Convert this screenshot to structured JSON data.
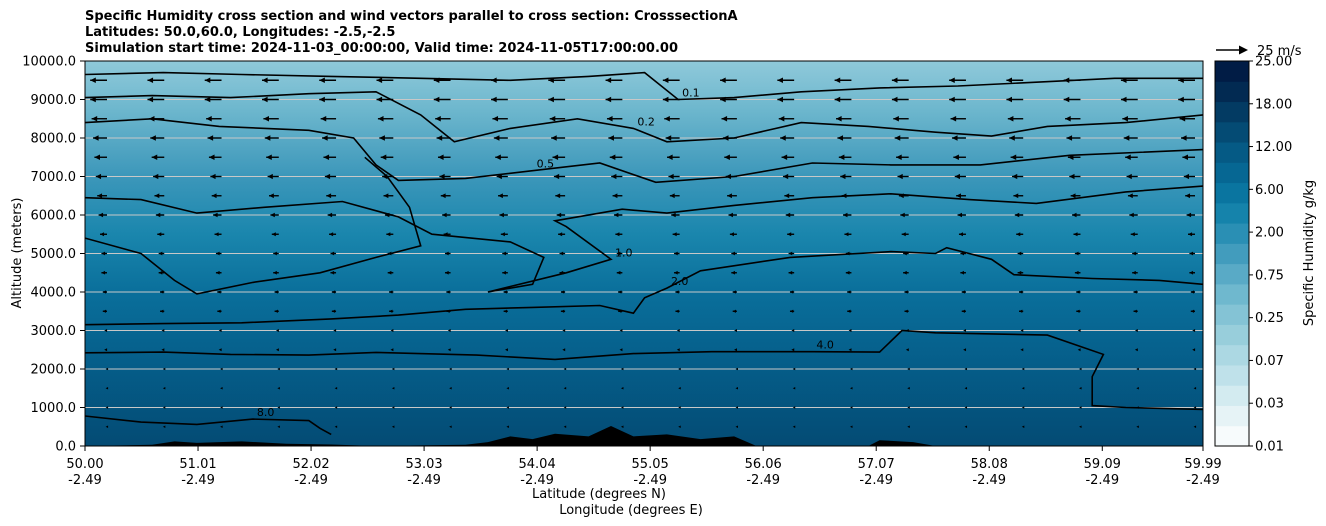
{
  "chart_data": {
    "type": "contourf_cross_section",
    "title_lines": [
      "Specific Humidity cross section and wind vectors parallel to cross section: CrosssectionA",
      "Latitudes: 50.0,60.0, Longitudes: -2.5,-2.5",
      "Simulation start time: 2024-11-03_00:00:00, Valid time: 2024-11-05T17:00:00.00"
    ],
    "ylabel": "Altitude (meters)",
    "xlabel_lat": "Latitude (degrees N)",
    "xlabel_lon": "Longitude (degrees E)",
    "ylim": [
      0,
      10000
    ],
    "xlim": [
      50.0,
      59.99
    ],
    "y_ticks": [
      "0.0",
      "1000.0",
      "2000.0",
      "3000.0",
      "4000.0",
      "5000.0",
      "6000.0",
      "7000.0",
      "8000.0",
      "9000.0",
      "10000.0"
    ],
    "y_tick_values": [
      0,
      1000,
      2000,
      3000,
      4000,
      5000,
      6000,
      7000,
      8000,
      9000,
      10000
    ],
    "x_ticks_lat": [
      "50.00",
      "51.01",
      "52.02",
      "53.03",
      "54.04",
      "55.05",
      "56.06",
      "57.07",
      "58.08",
      "59.09",
      "59.99"
    ],
    "x_ticks_lon": [
      "-2.49",
      "-2.49",
      "-2.49",
      "-2.49",
      "-2.49",
      "-2.49",
      "-2.49",
      "-2.49",
      "-2.49",
      "-2.49",
      "-2.49"
    ],
    "x_tick_values": [
      50.0,
      51.01,
      52.02,
      53.03,
      54.04,
      55.05,
      56.06,
      57.07,
      58.08,
      59.09,
      59.99
    ],
    "grid": "horizontal",
    "colorbar": {
      "label": "Specific Humidity g/kg",
      "tick_labels": [
        "0.01",
        "0.03",
        "0.07",
        "0.25",
        "0.75",
        "2.00",
        "6.00",
        "12.00",
        "18.00",
        "25.00"
      ],
      "levels": [
        "0.01",
        "0.02",
        "0.03",
        "0.05",
        "0.07",
        "0.1",
        "0.25",
        "0.5",
        "0.75",
        "1.0",
        "2.00",
        "4.0",
        "6.00",
        "8.0",
        "12.00",
        "15.0",
        "18.00",
        "20.0",
        "25.00"
      ],
      "colors": [
        "#f7fbfc",
        "#e6f3f6",
        "#d3ebf0",
        "#bfe1ea",
        "#acd8e3",
        "#98cedb",
        "#84c3d5",
        "#6fb8ce",
        "#59aac6",
        "#429cbd",
        "#2a8fb4",
        "#1583ab",
        "#0a75a0",
        "#066793",
        "#055a85",
        "#044b74",
        "#033b63",
        "#022a52",
        "#011c45"
      ]
    },
    "wind_reference": {
      "label": "25 m/s",
      "speed": 25
    },
    "contour_levels_labeled": [
      "0.1",
      "0.2",
      "0.5",
      "1.0",
      "2.0",
      "4.0",
      "8.0",
      "0.1",
      "1.0"
    ],
    "contours": [
      {
        "level": 8.0,
        "label": "8.0",
        "points": [
          [
            50.0,
            780
          ],
          [
            50.5,
            620
          ],
          [
            51.0,
            560
          ],
          [
            51.5,
            700
          ],
          [
            52.0,
            660
          ],
          [
            52.1,
            460
          ],
          [
            52.2,
            300
          ]
        ]
      },
      {
        "level": 4.0,
        "label": "4.0",
        "points": [
          [
            50.0,
            2420
          ],
          [
            50.7,
            2440
          ],
          [
            51.3,
            2380
          ],
          [
            52.0,
            2360
          ],
          [
            52.6,
            2430
          ],
          [
            53.5,
            2360
          ],
          [
            54.2,
            2250
          ],
          [
            54.9,
            2400
          ],
          [
            55.6,
            2450
          ],
          [
            56.5,
            2450
          ],
          [
            57.1,
            2440
          ],
          [
            57.3,
            3000
          ],
          [
            57.6,
            2940
          ],
          [
            58.6,
            2880
          ],
          [
            59.1,
            2380
          ],
          [
            59.0,
            1800
          ],
          [
            59.0,
            1050
          ],
          [
            59.3,
            1000
          ],
          [
            59.99,
            950
          ]
        ]
      },
      {
        "level": 2.0,
        "label": "2.0",
        "points": [
          [
            50.0,
            3150
          ],
          [
            50.7,
            3180
          ],
          [
            51.4,
            3200
          ],
          [
            52.2,
            3300
          ],
          [
            52.8,
            3400
          ],
          [
            53.4,
            3550
          ],
          [
            54.0,
            3600
          ],
          [
            54.6,
            3650
          ],
          [
            54.9,
            3450
          ],
          [
            55.0,
            3850
          ],
          [
            55.2,
            4100
          ],
          [
            55.5,
            4550
          ],
          [
            56.3,
            4900
          ],
          [
            57.2,
            5050
          ],
          [
            57.6,
            5000
          ],
          [
            57.7,
            5150
          ],
          [
            58.1,
            4850
          ],
          [
            58.3,
            4450
          ],
          [
            59.0,
            4350
          ],
          [
            59.6,
            4300
          ],
          [
            59.99,
            4200
          ]
        ]
      },
      {
        "level": 1.0,
        "label": "1.0",
        "points": [
          [
            50.0,
            6450
          ],
          [
            50.5,
            6400
          ],
          [
            51.0,
            6050
          ],
          [
            51.6,
            6200
          ],
          [
            52.3,
            6350
          ],
          [
            52.8,
            5950
          ],
          [
            53.1,
            5500
          ],
          [
            53.8,
            5300
          ],
          [
            54.1,
            4900
          ],
          [
            54.0,
            4200
          ],
          [
            53.6,
            4000
          ],
          [
            54.3,
            4500
          ],
          [
            54.7,
            4850
          ],
          [
            54.3,
            5700
          ],
          [
            54.2,
            5850
          ],
          [
            54.8,
            6150
          ],
          [
            55.2,
            6050
          ],
          [
            55.8,
            6250
          ],
          [
            56.5,
            6450
          ],
          [
            57.2,
            6550
          ],
          [
            57.9,
            6400
          ],
          [
            58.5,
            6300
          ],
          [
            59.3,
            6600
          ],
          [
            59.99,
            6750
          ]
        ]
      },
      {
        "level": 1.0,
        "label": "",
        "points": [
          [
            50.0,
            5400
          ],
          [
            50.5,
            5000
          ],
          [
            50.8,
            4300
          ],
          [
            51.0,
            3950
          ],
          [
            51.5,
            4250
          ],
          [
            52.1,
            4500
          ],
          [
            52.6,
            4900
          ],
          [
            53.0,
            5200
          ],
          [
            52.9,
            6200
          ],
          [
            52.7,
            7000
          ],
          [
            52.5,
            7500
          ]
        ]
      },
      {
        "level": 0.5,
        "label": "0.5",
        "points": [
          [
            50.0,
            8400
          ],
          [
            50.6,
            8500
          ],
          [
            51.2,
            8300
          ],
          [
            52.0,
            8200
          ],
          [
            52.4,
            8000
          ],
          [
            52.6,
            7300
          ],
          [
            52.8,
            6900
          ],
          [
            53.4,
            6950
          ],
          [
            54.0,
            7150
          ],
          [
            54.6,
            7350
          ],
          [
            55.1,
            6850
          ],
          [
            55.8,
            7000
          ],
          [
            56.5,
            7350
          ],
          [
            57.2,
            7300
          ],
          [
            58.0,
            7300
          ],
          [
            58.8,
            7550
          ],
          [
            59.99,
            7700
          ]
        ]
      },
      {
        "level": 0.2,
        "label": "0.2",
        "points": [
          [
            50.0,
            9050
          ],
          [
            50.6,
            9100
          ],
          [
            51.3,
            9050
          ],
          [
            52.0,
            9150
          ],
          [
            52.6,
            9200
          ],
          [
            53.0,
            8600
          ],
          [
            53.3,
            7900
          ],
          [
            53.8,
            8250
          ],
          [
            54.4,
            8500
          ],
          [
            54.9,
            8250
          ],
          [
            55.2,
            7900
          ],
          [
            55.8,
            8000
          ],
          [
            56.4,
            8400
          ],
          [
            57.0,
            8300
          ],
          [
            57.6,
            8150
          ],
          [
            58.1,
            8050
          ],
          [
            58.6,
            8300
          ],
          [
            59.3,
            8400
          ],
          [
            59.99,
            8600
          ]
        ]
      },
      {
        "level": 0.1,
        "label": "0.1",
        "points": [
          [
            50.0,
            9650
          ],
          [
            50.7,
            9700
          ],
          [
            51.4,
            9650
          ],
          [
            52.2,
            9600
          ],
          [
            53.0,
            9550
          ],
          [
            53.8,
            9500
          ],
          [
            54.5,
            9600
          ],
          [
            55.0,
            9700
          ],
          [
            55.3,
            9000
          ],
          [
            55.8,
            9050
          ],
          [
            56.4,
            9200
          ],
          [
            57.1,
            9300
          ],
          [
            57.8,
            9350
          ],
          [
            58.5,
            9450
          ],
          [
            59.2,
            9550
          ],
          [
            59.99,
            9550
          ]
        ]
      }
    ],
    "terrain": [
      [
        50.0,
        0
      ],
      [
        50.6,
        30
      ],
      [
        50.8,
        120
      ],
      [
        51.0,
        80
      ],
      [
        51.4,
        120
      ],
      [
        51.8,
        60
      ],
      [
        52.2,
        40
      ],
      [
        52.6,
        0
      ],
      [
        53.4,
        30
      ],
      [
        53.6,
        100
      ],
      [
        53.8,
        250
      ],
      [
        54.0,
        180
      ],
      [
        54.2,
        320
      ],
      [
        54.5,
        250
      ],
      [
        54.7,
        520
      ],
      [
        54.9,
        250
      ],
      [
        55.2,
        300
      ],
      [
        55.5,
        180
      ],
      [
        55.8,
        250
      ],
      [
        56.0,
        0
      ],
      [
        57.0,
        0
      ],
      [
        57.1,
        150
      ],
      [
        57.4,
        100
      ],
      [
        57.6,
        0
      ],
      [
        59.99,
        0
      ]
    ],
    "wind_vectors_rows": [
      {
        "z": 9500,
        "u": -12
      },
      {
        "z": 9000,
        "u": -12
      },
      {
        "z": 8500,
        "u": -11
      },
      {
        "z": 8000,
        "u": -10
      },
      {
        "z": 7500,
        "u": -9
      },
      {
        "z": 7000,
        "u": -8
      },
      {
        "z": 6500,
        "u": -7
      },
      {
        "z": 6000,
        "u": -6
      },
      {
        "z": 5500,
        "u": -5
      },
      {
        "z": 5000,
        "u": -4
      },
      {
        "z": 4500,
        "u": -4
      },
      {
        "z": 4000,
        "u": -3
      },
      {
        "z": 3500,
        "u": -3
      },
      {
        "z": 3000,
        "u": -2
      },
      {
        "z": 2500,
        "u": -2
      },
      {
        "z": 2000,
        "u": -1
      },
      {
        "z": 1500,
        "u": -1
      },
      {
        "z": 1000,
        "u": -1
      },
      {
        "z": 500,
        "u": -1
      }
    ]
  }
}
